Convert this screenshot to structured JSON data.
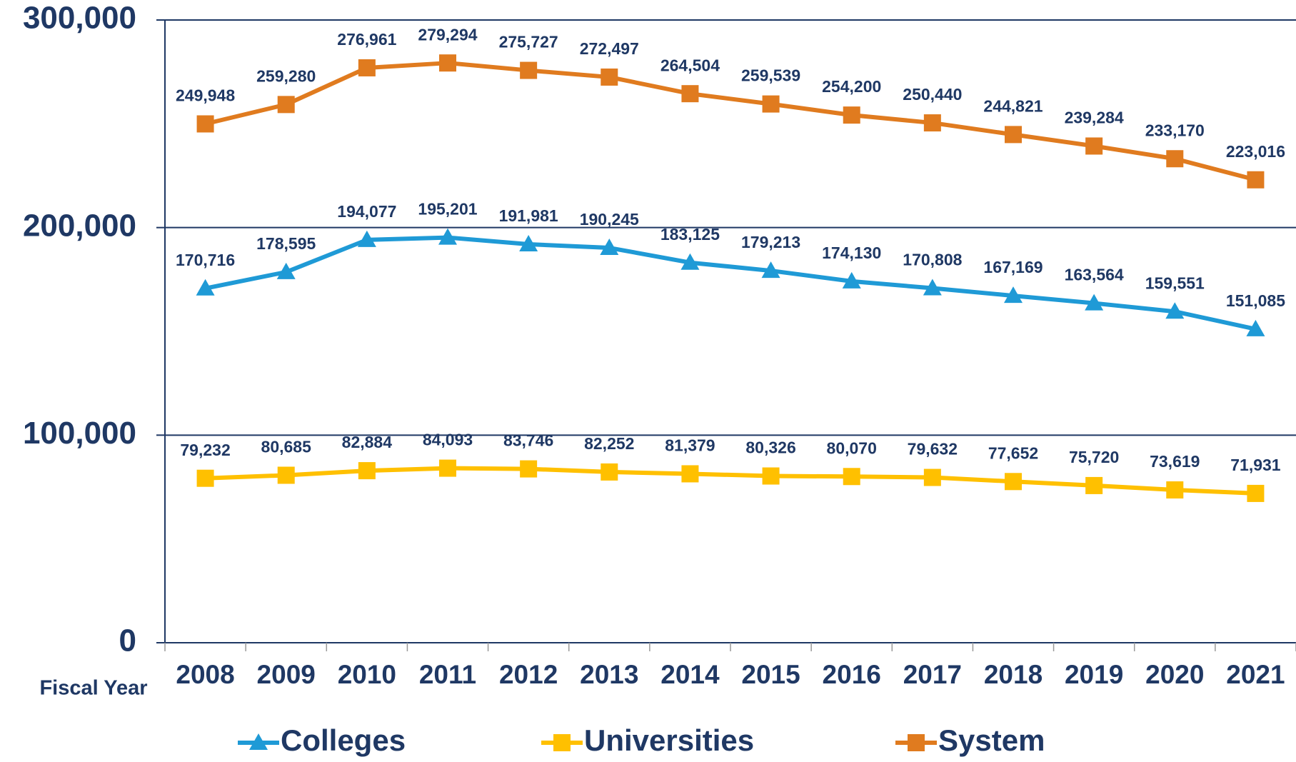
{
  "chart_data": {
    "type": "line",
    "x_label": "Fiscal Year",
    "categories": [
      "2008",
      "2009",
      "2010",
      "2011",
      "2012",
      "2013",
      "2014",
      "2015",
      "2016",
      "2017",
      "2018",
      "2019",
      "2020",
      "2021"
    ],
    "series": [
      {
        "name": "Colleges",
        "color": "#1f9ad6",
        "marker": "triangle",
        "values": [
          170716,
          178595,
          194077,
          195201,
          191981,
          190245,
          183125,
          179213,
          174130,
          170808,
          167169,
          163564,
          159551,
          151085
        ],
        "value_labels": [
          "170,716",
          "178,595",
          "194,077",
          "195,201",
          "191,981",
          "190,245",
          "183,125",
          "179,213",
          "174,130",
          "170,808",
          "167,169",
          "163,564",
          "159,551",
          "151,085"
        ]
      },
      {
        "name": "Universities",
        "color": "#ffc000",
        "marker": "square",
        "values": [
          79232,
          80685,
          82884,
          84093,
          83746,
          82252,
          81379,
          80326,
          80070,
          79632,
          77652,
          75720,
          73619,
          71931
        ],
        "value_labels": [
          "79,232",
          "80,685",
          "82,884",
          "84,093",
          "83,746",
          "82,252",
          "81,379",
          "80,326",
          "80,070",
          "79,632",
          "77,652",
          "75,720",
          "73,619",
          "71,931"
        ]
      },
      {
        "name": "System",
        "color": "#e07b1f",
        "marker": "square",
        "values": [
          249948,
          259280,
          276961,
          279294,
          275727,
          272497,
          264504,
          259539,
          254200,
          250440,
          244821,
          239284,
          233170,
          223016
        ],
        "value_labels": [
          "249,948",
          "259,280",
          "276,961",
          "279,294",
          "275,727",
          "272,497",
          "264,504",
          "259,539",
          "254,200",
          "250,440",
          "244,821",
          "239,284",
          "233,170",
          "223,016"
        ]
      }
    ],
    "ylim": [
      0,
      300000
    ],
    "yticks": [
      0,
      {
        "value": 100000,
        "label": "100,000"
      },
      {
        "value": 200000,
        "label": "200,000"
      },
      {
        "value": 300000,
        "label": "300,000"
      }
    ],
    "grid": true,
    "legend": "bottom"
  }
}
